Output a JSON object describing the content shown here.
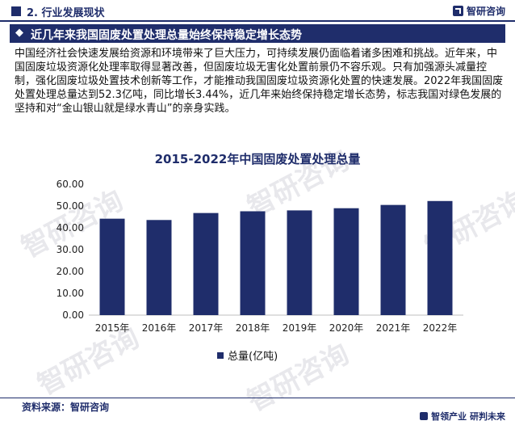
{
  "header": {
    "section_label": "2. 行业发展现状",
    "brand": "智研咨询"
  },
  "banner": {
    "marker": "◆",
    "title": "近几年来我国固废处置处理总量始终保持稳定增长态势"
  },
  "paragraph": "中国经济社会快速发展给资源和环境带来了巨大压力，可持续发展仍面临着诸多困难和挑战。近年来，中国固废垃圾资源化处理率取得显著改善，但固废垃圾无害化处置前景仍不容乐观。只有加强源头减量控制，强化固废垃圾处置技术创新等工作，才能推动我国固废垃圾资源化处置的快速发展。2022年我国固废处置处理总量达到52.3亿吨，同比增长3.44%，近几年来始终保持稳定增长态势，标志我国对绿色发展的坚持和对“金山银山就是绿水青山”的亲身实践。",
  "watermark": {
    "text": "智研咨询",
    "url_text": "www.chyxx.com"
  },
  "chart_data": {
    "type": "bar",
    "title": "2015-2022年中国固废处置处理总量",
    "categories": [
      "2015年",
      "2016年",
      "2017年",
      "2018年",
      "2019年",
      "2020年",
      "2021年",
      "2022年"
    ],
    "series": [
      {
        "name": "总量(亿吨)",
        "values": [
          44.2,
          43.6,
          46.8,
          47.6,
          48.0,
          49.0,
          50.5,
          52.3
        ]
      }
    ],
    "y_ticks": [
      "0.00",
      "10.00",
      "20.00",
      "30.00",
      "40.00",
      "50.00",
      "60.00"
    ],
    "ylim": [
      0,
      60
    ],
    "grid": false,
    "legend_position": "bottom",
    "bar_color": "#1f2d6b"
  },
  "footer": {
    "source": "资料来源：智研咨询",
    "slogan": "智领产业  研判未来"
  },
  "colors": {
    "primary": "#1f2d6b"
  }
}
